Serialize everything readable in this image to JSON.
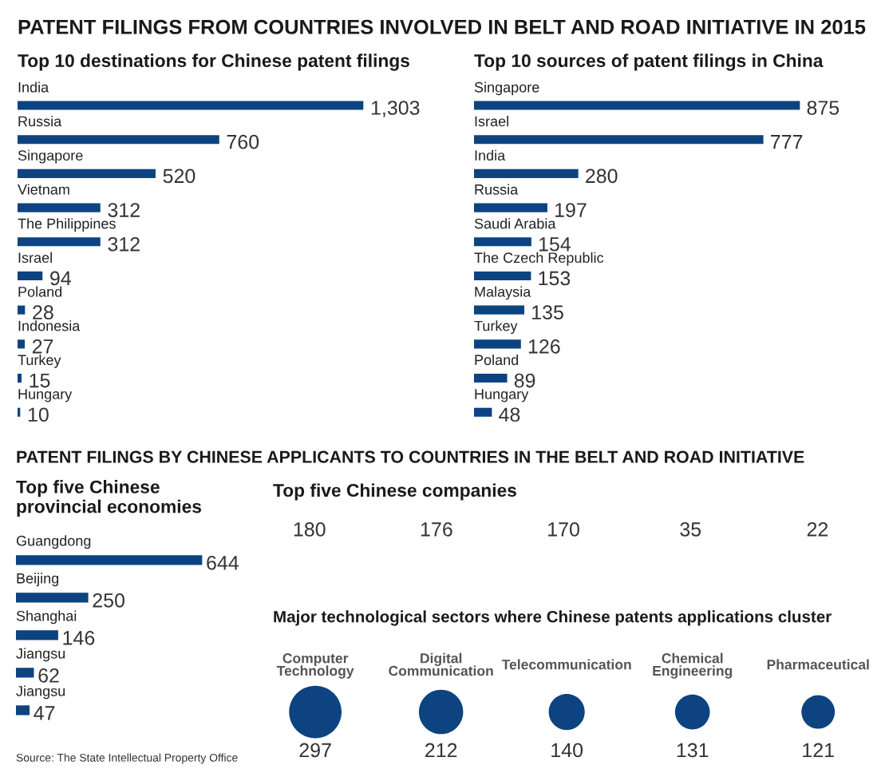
{
  "chart_data": [
    {
      "type": "bar",
      "orientation": "horizontal",
      "title": "PATENT FILINGS FROM COUNTRIES INVOLVED IN BELT AND ROAD INITIATIVE IN 2015",
      "subtitle": "Top 10 destinations for Chinese patent filings",
      "categories": [
        "India",
        "Russia",
        "Singapore",
        "Vietnam",
        "The Philippines",
        "Israel",
        "Poland",
        "Indonesia",
        "Turkey",
        "Hungary"
      ],
      "values": [
        1303,
        760,
        520,
        312,
        312,
        94,
        28,
        27,
        15,
        10
      ],
      "value_labels": [
        "1,303",
        "760",
        "520",
        "312",
        "312",
        "94",
        "28",
        "27",
        "15",
        "10"
      ],
      "color": "#0d4380"
    },
    {
      "type": "bar",
      "orientation": "horizontal",
      "title": "Top 10 sources of patent filings in China",
      "categories": [
        "Singapore",
        "Israel",
        "India",
        "Russia",
        "Saudi Arabia",
        "The Czech Republic",
        "Malaysia",
        "Turkey",
        "Poland",
        "Hungary"
      ],
      "values": [
        875,
        777,
        280,
        197,
        154,
        153,
        135,
        126,
        89,
        48
      ],
      "value_labels": [
        "875",
        "777",
        "280",
        "197",
        "154",
        "153",
        "135",
        "126",
        "89",
        "48"
      ],
      "color": "#0d4380"
    },
    {
      "type": "bar",
      "orientation": "horizontal",
      "title": "PATENT FILINGS BY CHINESE APPLICANTS TO COUNTRIES IN THE BELT AND ROAD INITIATIVE",
      "subtitle": "Top five Chinese provincial economies",
      "categories": [
        "Guangdong",
        "Beijing",
        "Shanghai",
        "Jiangsu",
        "Jiangsu"
      ],
      "values": [
        644,
        250,
        146,
        62,
        47
      ],
      "value_labels": [
        "644",
        "250",
        "146",
        "62",
        "47"
      ],
      "color": "#0d4380",
      "annotations": [
        "Source: The State Intellectual Property Office"
      ]
    },
    {
      "type": "other",
      "title": "Top five Chinese companies",
      "categories": [
        null,
        null,
        null,
        null,
        null
      ],
      "values": [
        180,
        176,
        170,
        35,
        22
      ],
      "data_labels": true
    },
    {
      "type": "other",
      "title": "Major technological sectors where Chinese patents applications cluster",
      "categories": [
        "Computer Technology",
        "Digital Communication",
        "Telecommunication",
        "Chemical Engineering",
        "Pharmaceutical"
      ],
      "values": [
        297,
        212,
        140,
        131,
        121
      ],
      "data_labels": true,
      "color": "#0d4380"
    }
  ]
}
